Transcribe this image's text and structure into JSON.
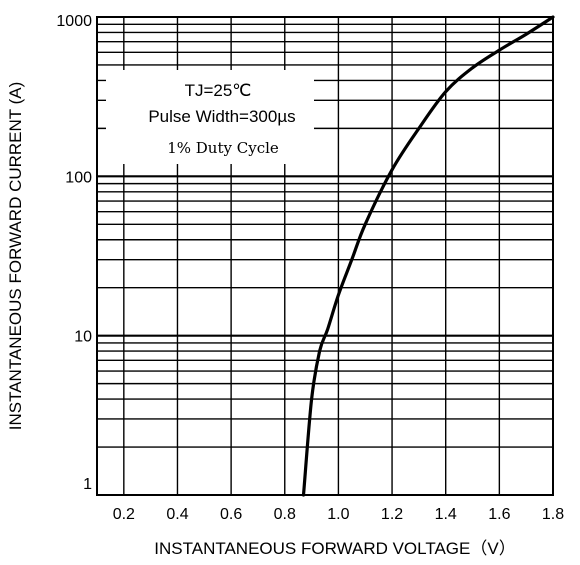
{
  "chart_data": {
    "type": "line",
    "title": "",
    "xlabel": "INSTANTANEOUS FORWARD VOLTAGE（V）",
    "ylabel": "INSTANTANEOUS FORWARD CURRENT (A)",
    "xlim": [
      0.1,
      1.8
    ],
    "ylim": [
      1,
      1000
    ],
    "yscale": "log",
    "grid": true,
    "x_ticks": [
      0.2,
      0.4,
      0.6,
      0.8,
      1.0,
      1.2,
      1.4,
      1.6,
      1.8
    ],
    "x_tick_labels": [
      "0.2",
      "0.4",
      "0.6",
      "0.8",
      "1.0",
      "1.2",
      "1.4",
      "1.6",
      "1.8"
    ],
    "y_ticks": [
      1,
      10,
      100,
      1000
    ],
    "y_tick_labels": [
      "1",
      "10",
      "100",
      "1000"
    ],
    "annotations": [
      "TJ=25℃",
      "Pulse Width=300µs",
      "1% Duty Cycle"
    ],
    "series": [
      {
        "x": [
          0.87,
          0.9,
          0.93,
          0.96,
          1.0,
          1.05,
          1.1,
          1.2,
          1.3,
          1.4,
          1.5,
          1.6,
          1.7,
          1.8
        ],
        "y": [
          1,
          4,
          8,
          11,
          18,
          30,
          50,
          110,
          200,
          340,
          480,
          620,
          780,
          1000
        ]
      }
    ]
  }
}
